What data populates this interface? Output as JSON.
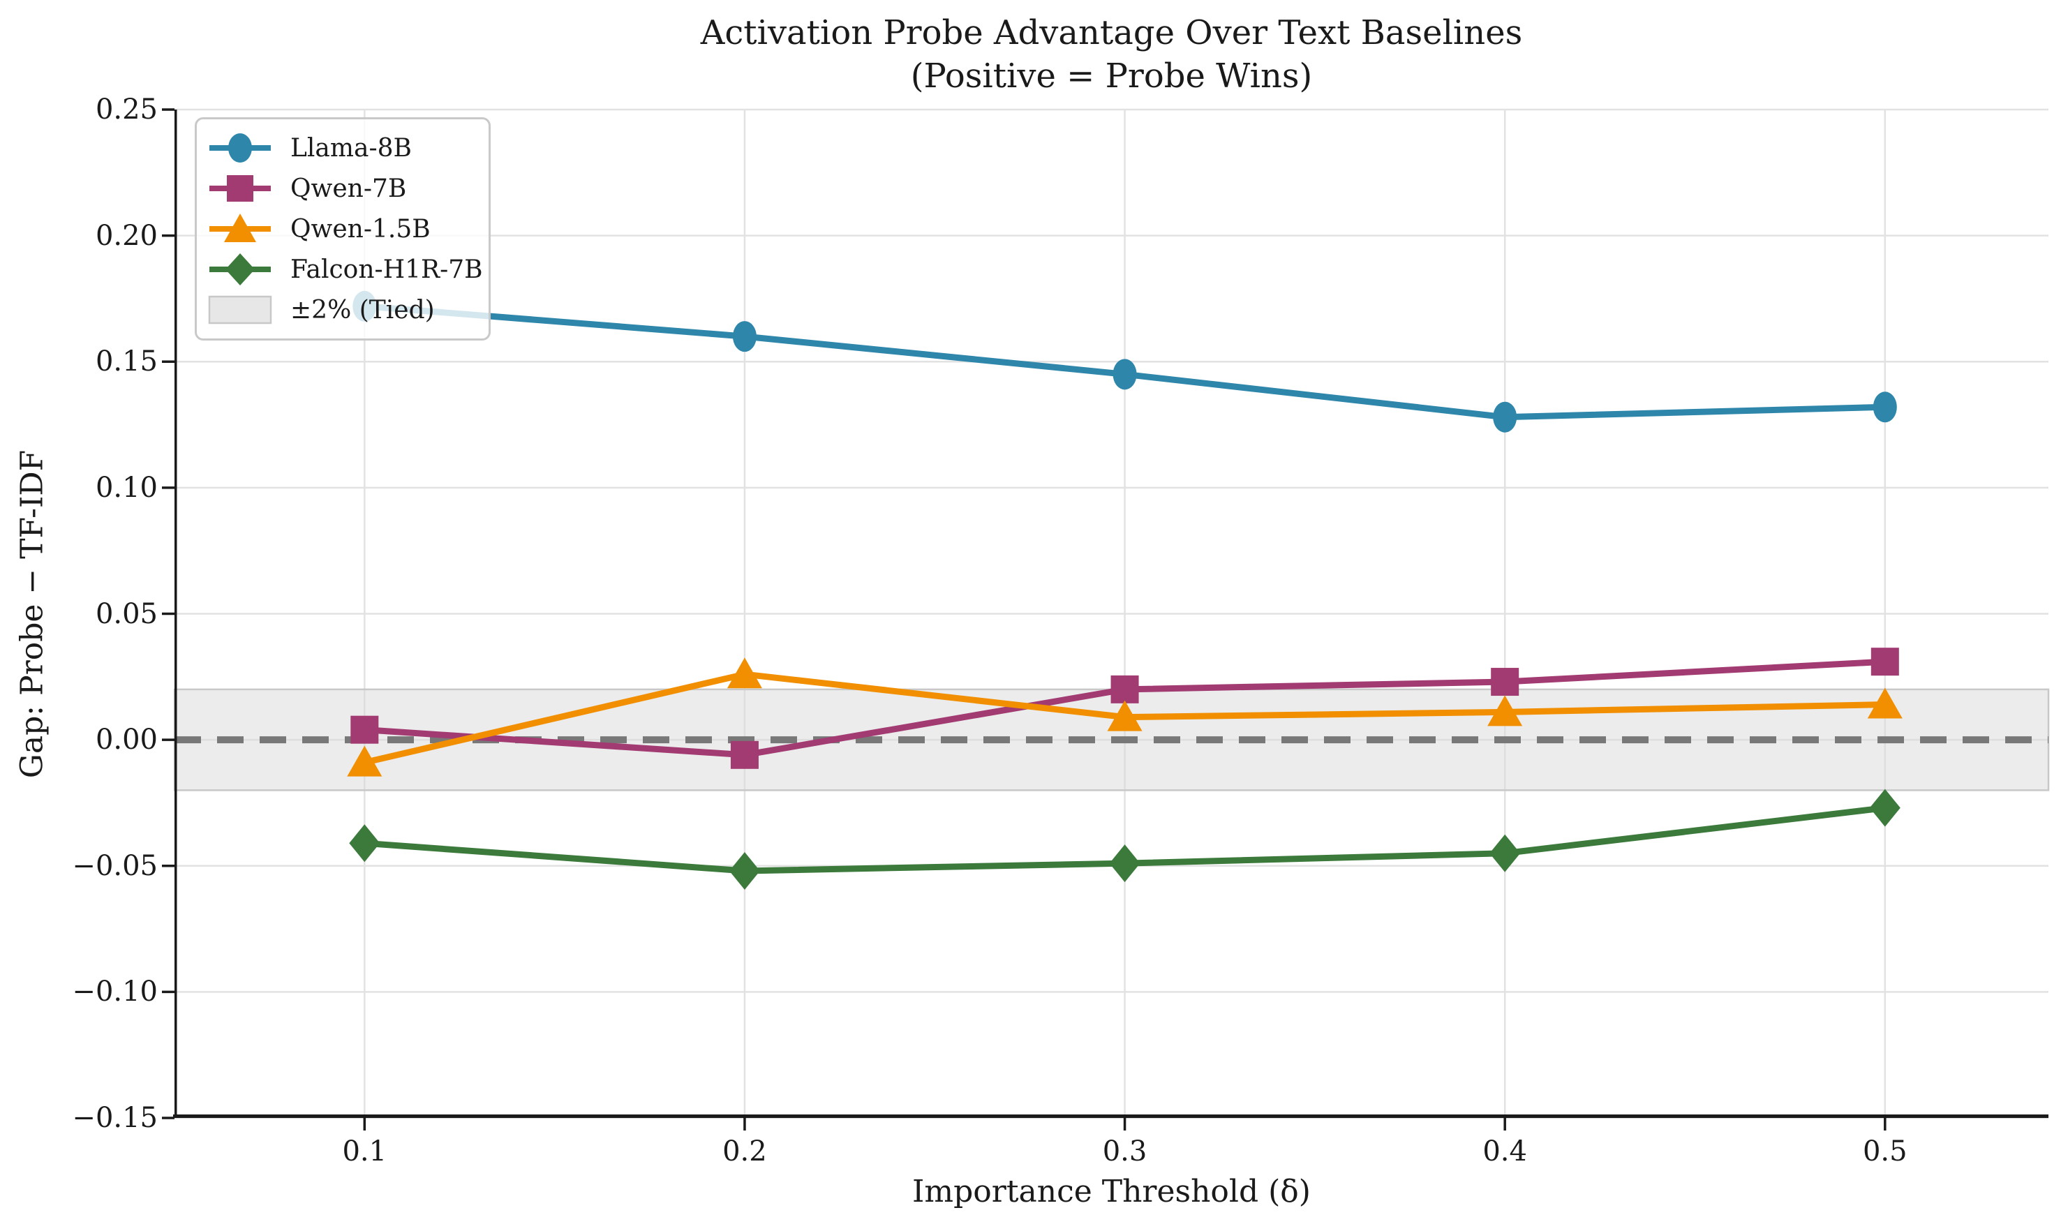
{
  "figure": {
    "title_line1": "Activation Probe Advantage Over Text Baselines",
    "title_line2": "(Positive = Probe Wins)"
  },
  "chart_data": {
    "type": "line",
    "title": "Activation Probe Advantage Over Text Baselines (Positive = Probe Wins)",
    "xlabel": "Importance Threshold (δ)",
    "ylabel": "Gap: Probe − TF-IDF",
    "x": [
      0.1,
      0.2,
      0.3,
      0.4,
      0.5
    ],
    "xlim": [
      0.05,
      0.543
    ],
    "ylim": [
      -0.15,
      0.25
    ],
    "grid": true,
    "legend_position": "upper left",
    "series": [
      {
        "name": "Llama-8B",
        "color": "#2E86AB",
        "marker": "circle",
        "values": [
          0.172,
          0.16,
          0.145,
          0.128,
          0.132
        ]
      },
      {
        "name": "Qwen-7B",
        "color": "#A23B72",
        "marker": "square",
        "values": [
          0.004,
          -0.006,
          0.02,
          0.023,
          0.031
        ]
      },
      {
        "name": "Qwen-1.5B",
        "color": "#F18F01",
        "marker": "triangle",
        "values": [
          -0.009,
          0.026,
          0.009,
          0.011,
          0.014
        ]
      },
      {
        "name": "Falcon-H1R-7B",
        "color": "#3B7A3B",
        "marker": "diamond",
        "values": [
          -0.041,
          -0.052,
          -0.049,
          -0.045,
          -0.027
        ]
      }
    ],
    "tied_band": {
      "label": "±2% (Tied)",
      "range": [
        -0.02,
        0.02
      ],
      "fill": "#DADADA",
      "fill_opacity": 0.5,
      "edge": "#C8C8C8"
    },
    "zero_line": {
      "value": 0.0,
      "style": "dashed",
      "color": "#787878"
    },
    "xticks": [
      {
        "value": 0.1,
        "label": "0.1"
      },
      {
        "value": 0.2,
        "label": "0.2"
      },
      {
        "value": 0.3,
        "label": "0.3"
      },
      {
        "value": 0.4,
        "label": "0.4"
      },
      {
        "value": 0.5,
        "label": "0.5"
      }
    ],
    "yticks": [
      {
        "value": 0.25,
        "label": "0.25"
      },
      {
        "value": 0.2,
        "label": "0.20"
      },
      {
        "value": 0.15,
        "label": "0.15"
      },
      {
        "value": 0.1,
        "label": "0.10"
      },
      {
        "value": 0.05,
        "label": "0.05"
      },
      {
        "value": 0.0,
        "label": "0.00"
      },
      {
        "value": -0.05,
        "label": "−0.05"
      },
      {
        "value": -0.1,
        "label": "−0.10"
      },
      {
        "value": -0.15,
        "label": "−0.15"
      }
    ],
    "style": {
      "grid_color": "#E2E2E2",
      "spine_color": "#1a1a1a",
      "text_color": "#1a1a1a",
      "legend_border": "#c9c9c9"
    }
  }
}
